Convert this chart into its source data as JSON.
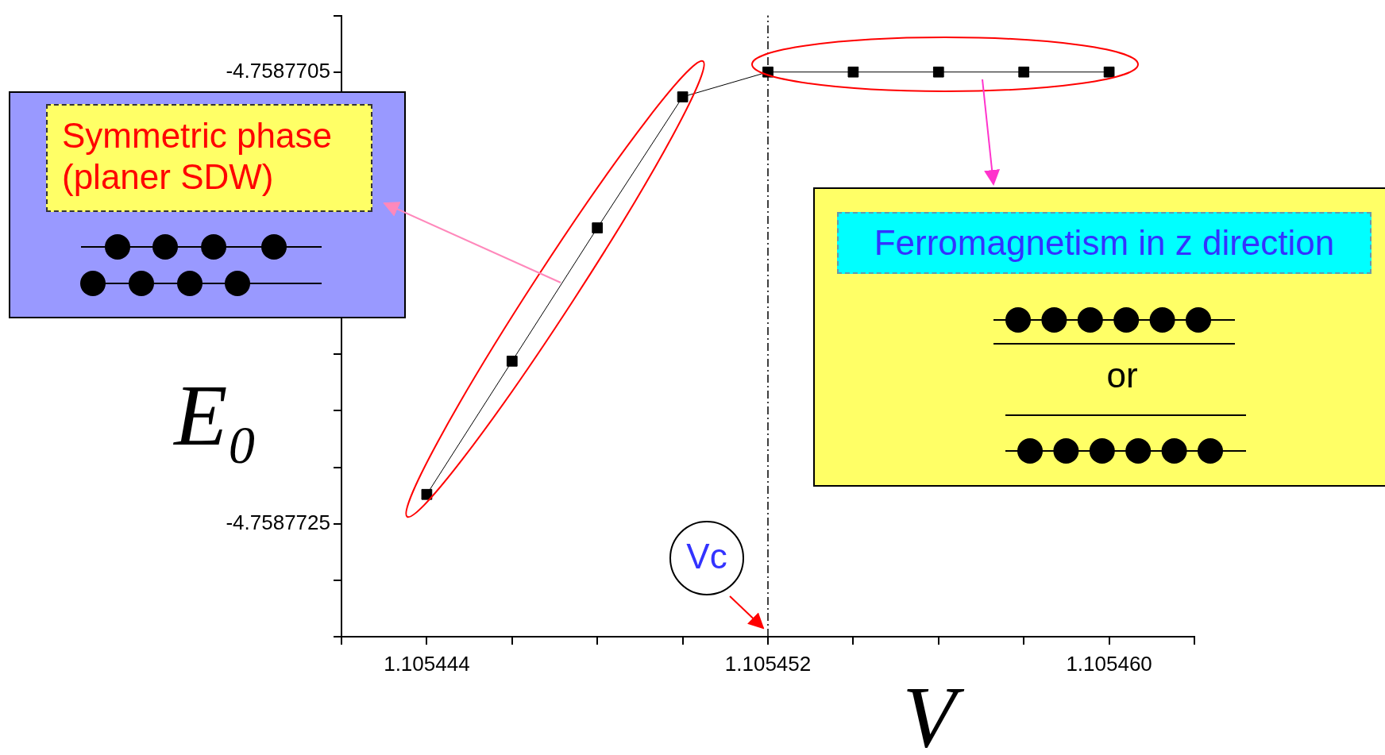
{
  "chart_data": {
    "type": "line",
    "xlabel": "V",
    "ylabel": "E₀",
    "x": [
      1.105444,
      1.105446,
      1.105448,
      1.10545,
      1.105452,
      1.105454,
      1.105456,
      1.105458,
      1.10546
    ],
    "series": [
      {
        "color": "#000000",
        "values": [
          -4.75877237,
          -4.75877178,
          -4.75877119,
          -4.75877061,
          -4.7587705,
          -4.7587705,
          -4.7587705,
          -4.7587705,
          -4.7587705
        ]
      }
    ],
    "marker": "square",
    "line_style": "solid",
    "grid": false,
    "legend": false,
    "xlim": [
      1.105442,
      1.105462
    ],
    "xticks": [
      {
        "value": 1.105442,
        "label": null
      },
      {
        "value": 1.105444,
        "label": "1.105444"
      },
      {
        "value": 1.105446,
        "label": null
      },
      {
        "value": 1.105448,
        "label": null
      },
      {
        "value": 1.10545,
        "label": null
      },
      {
        "value": 1.105452,
        "label": "1.105452"
      },
      {
        "value": 1.105454,
        "label": null
      },
      {
        "value": 1.105456,
        "label": null
      },
      {
        "value": 1.105458,
        "label": null
      },
      {
        "value": 1.10546,
        "label": "1.105460"
      },
      {
        "value": 1.105462,
        "label": null
      }
    ],
    "ylim": [
      -4.758773,
      -4.75877025
    ],
    "yticks": [
      {
        "value": -4.758773,
        "label": null
      },
      {
        "value": -4.75877275,
        "label": null
      },
      {
        "value": -4.7587725,
        "label": "-4.7587725"
      },
      {
        "value": -4.75877225,
        "label": null
      },
      {
        "value": -4.758772,
        "label": null
      },
      {
        "value": -4.75877175,
        "label": null
      },
      {
        "value": -4.7587715,
        "label": null
      },
      {
        "value": -4.75877125,
        "label": null
      },
      {
        "value": -4.758771,
        "label": null
      },
      {
        "value": -4.75877075,
        "label": null
      },
      {
        "value": -4.7587705,
        "label": "-4.7587705"
      },
      {
        "value": -4.75877025,
        "label": null
      }
    ],
    "ref_lines": [
      {
        "axis": "x",
        "value": 1.105452,
        "color": "#000000",
        "line_style": "dashed"
      }
    ],
    "annotations": [
      "Symmetric phase (planer SDW)",
      "Ferromagnetism in z direction",
      "or",
      "Vc"
    ]
  }
}
